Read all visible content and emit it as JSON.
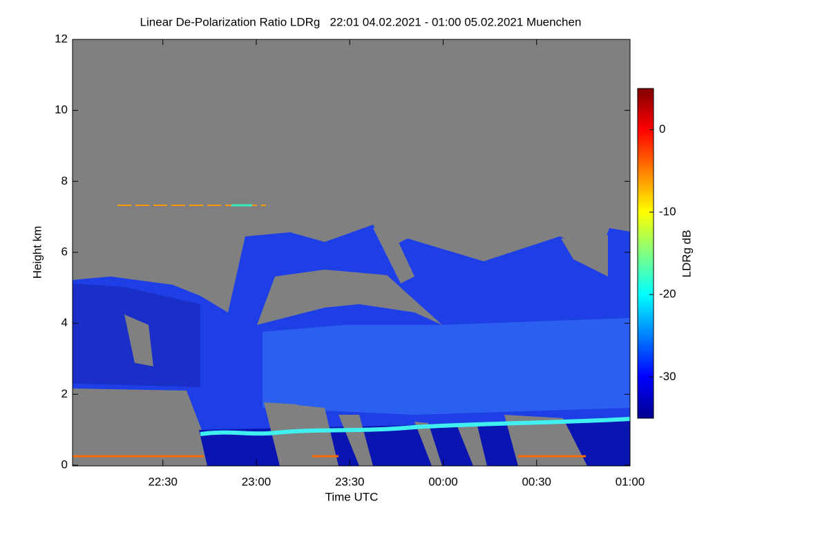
{
  "chart_data": {
    "type": "heatmap",
    "title": "Linear De-Polarization Ratio LDRg   22:01 04.02.2021 - 01:00 05.02.2021 Muenchen",
    "x_label": "Time UTC",
    "y_label": "Height km",
    "colorbar_label": "LDRg dB",
    "xlim": [
      22.0167,
      25.0
    ],
    "xticks": [
      {
        "value": 22.5,
        "label": "22:30"
      },
      {
        "value": 23.0,
        "label": "23:00"
      },
      {
        "value": 23.5,
        "label": "23:30"
      },
      {
        "value": 24.0,
        "label": "00:00"
      },
      {
        "value": 24.5,
        "label": "00:30"
      },
      {
        "value": 25.0,
        "label": "01:00"
      }
    ],
    "ylim": [
      0,
      12
    ],
    "yticks": [
      0,
      2,
      4,
      6,
      8,
      10,
      12
    ],
    "clim": [
      -35,
      5
    ],
    "cticks": [
      -30,
      -20,
      -10,
      0
    ],
    "colormap": "jet"
  }
}
